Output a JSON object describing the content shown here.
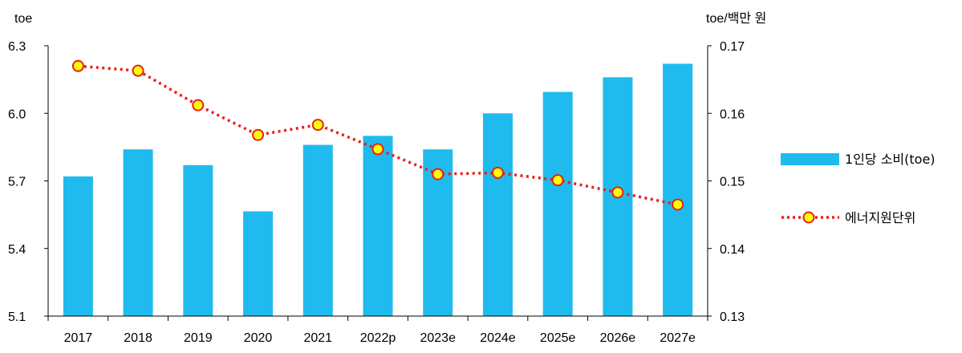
{
  "chart_data": {
    "type": "bar",
    "categories": [
      "2017",
      "2018",
      "2019",
      "2020",
      "2021",
      "2022p",
      "2023e",
      "2024e",
      "2025e",
      "2026e",
      "2027e"
    ],
    "series": [
      {
        "name": "1인당 소비(toe)",
        "type": "bar",
        "axis": "left",
        "color": "#1FBBEE",
        "values": [
          5.72,
          5.84,
          5.77,
          5.565,
          5.86,
          5.9,
          5.84,
          6.0,
          6.095,
          6.16,
          6.22
        ]
      },
      {
        "name": "에너지원단위",
        "type": "line",
        "axis": "right",
        "line_color": "#E8201A",
        "marker_fill": "#FFFF00",
        "marker_edge": "#E8201A",
        "values": [
          0.167,
          0.1663,
          0.1612,
          0.1568,
          0.1583,
          0.1547,
          0.151,
          0.1512,
          0.1501,
          0.1483,
          0.1465
        ]
      }
    ],
    "left_axis": {
      "unit_label": "toe",
      "ylim": [
        5.1,
        6.3
      ],
      "ticks": [
        "5.1",
        "5.4",
        "5.7",
        "6.0",
        "6.3"
      ]
    },
    "right_axis": {
      "unit_label": "toe/백만 원",
      "ylim": [
        0.13,
        0.17
      ],
      "ticks": [
        "0.13",
        "0.14",
        "0.15",
        "0.16",
        "0.17"
      ]
    },
    "legend_placement": "right",
    "grid": false
  }
}
